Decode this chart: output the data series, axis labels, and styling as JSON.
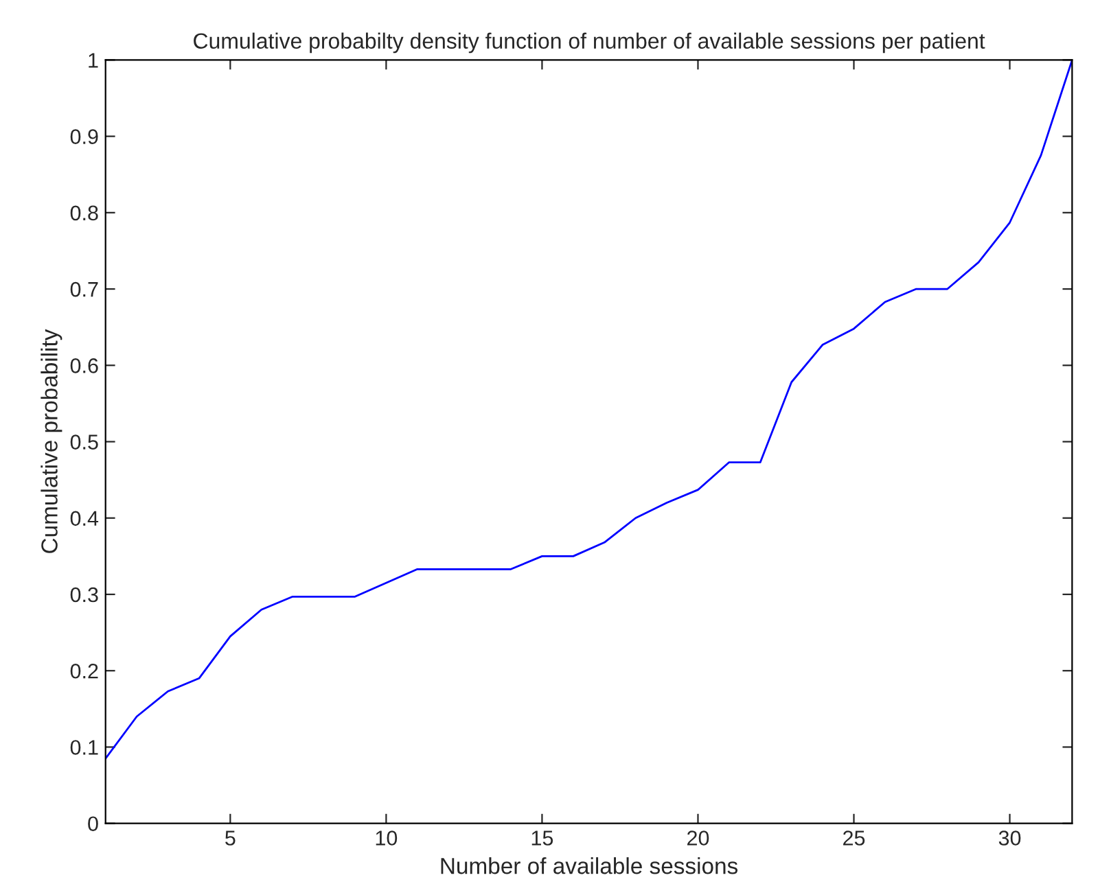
{
  "chart_data": {
    "type": "line",
    "title": "Cumulative probabilty density function of number of available sessions per patient",
    "xlabel": "Number of available sessions",
    "ylabel": "Cumulative probability",
    "x": [
      1,
      2,
      3,
      4,
      5,
      6,
      7,
      8,
      9,
      10,
      11,
      12,
      13,
      14,
      15,
      16,
      17,
      18,
      19,
      20,
      21,
      22,
      23,
      24,
      25,
      26,
      27,
      28,
      29,
      30,
      31,
      32
    ],
    "series": [
      {
        "color": "#0000ff",
        "values": [
          0.085,
          0.14,
          0.173,
          0.19,
          0.245,
          0.28,
          0.297,
          0.297,
          0.297,
          0.315,
          0.333,
          0.333,
          0.333,
          0.333,
          0.35,
          0.35,
          0.368,
          0.4,
          0.42,
          0.437,
          0.473,
          0.473,
          0.578,
          0.627,
          0.648,
          0.683,
          0.7,
          0.7,
          0.735,
          0.787,
          0.875,
          1.0
        ]
      }
    ],
    "xlim": [
      1,
      32
    ],
    "ylim": [
      0,
      1
    ],
    "xticks": [
      5,
      10,
      15,
      20,
      25,
      30
    ],
    "yticks": [
      0,
      0.1,
      0.2,
      0.3,
      0.4,
      0.5,
      0.6,
      0.7,
      0.8,
      0.9,
      1
    ],
    "grid": false,
    "legend": false,
    "marker": "none",
    "line_style": "solid"
  }
}
